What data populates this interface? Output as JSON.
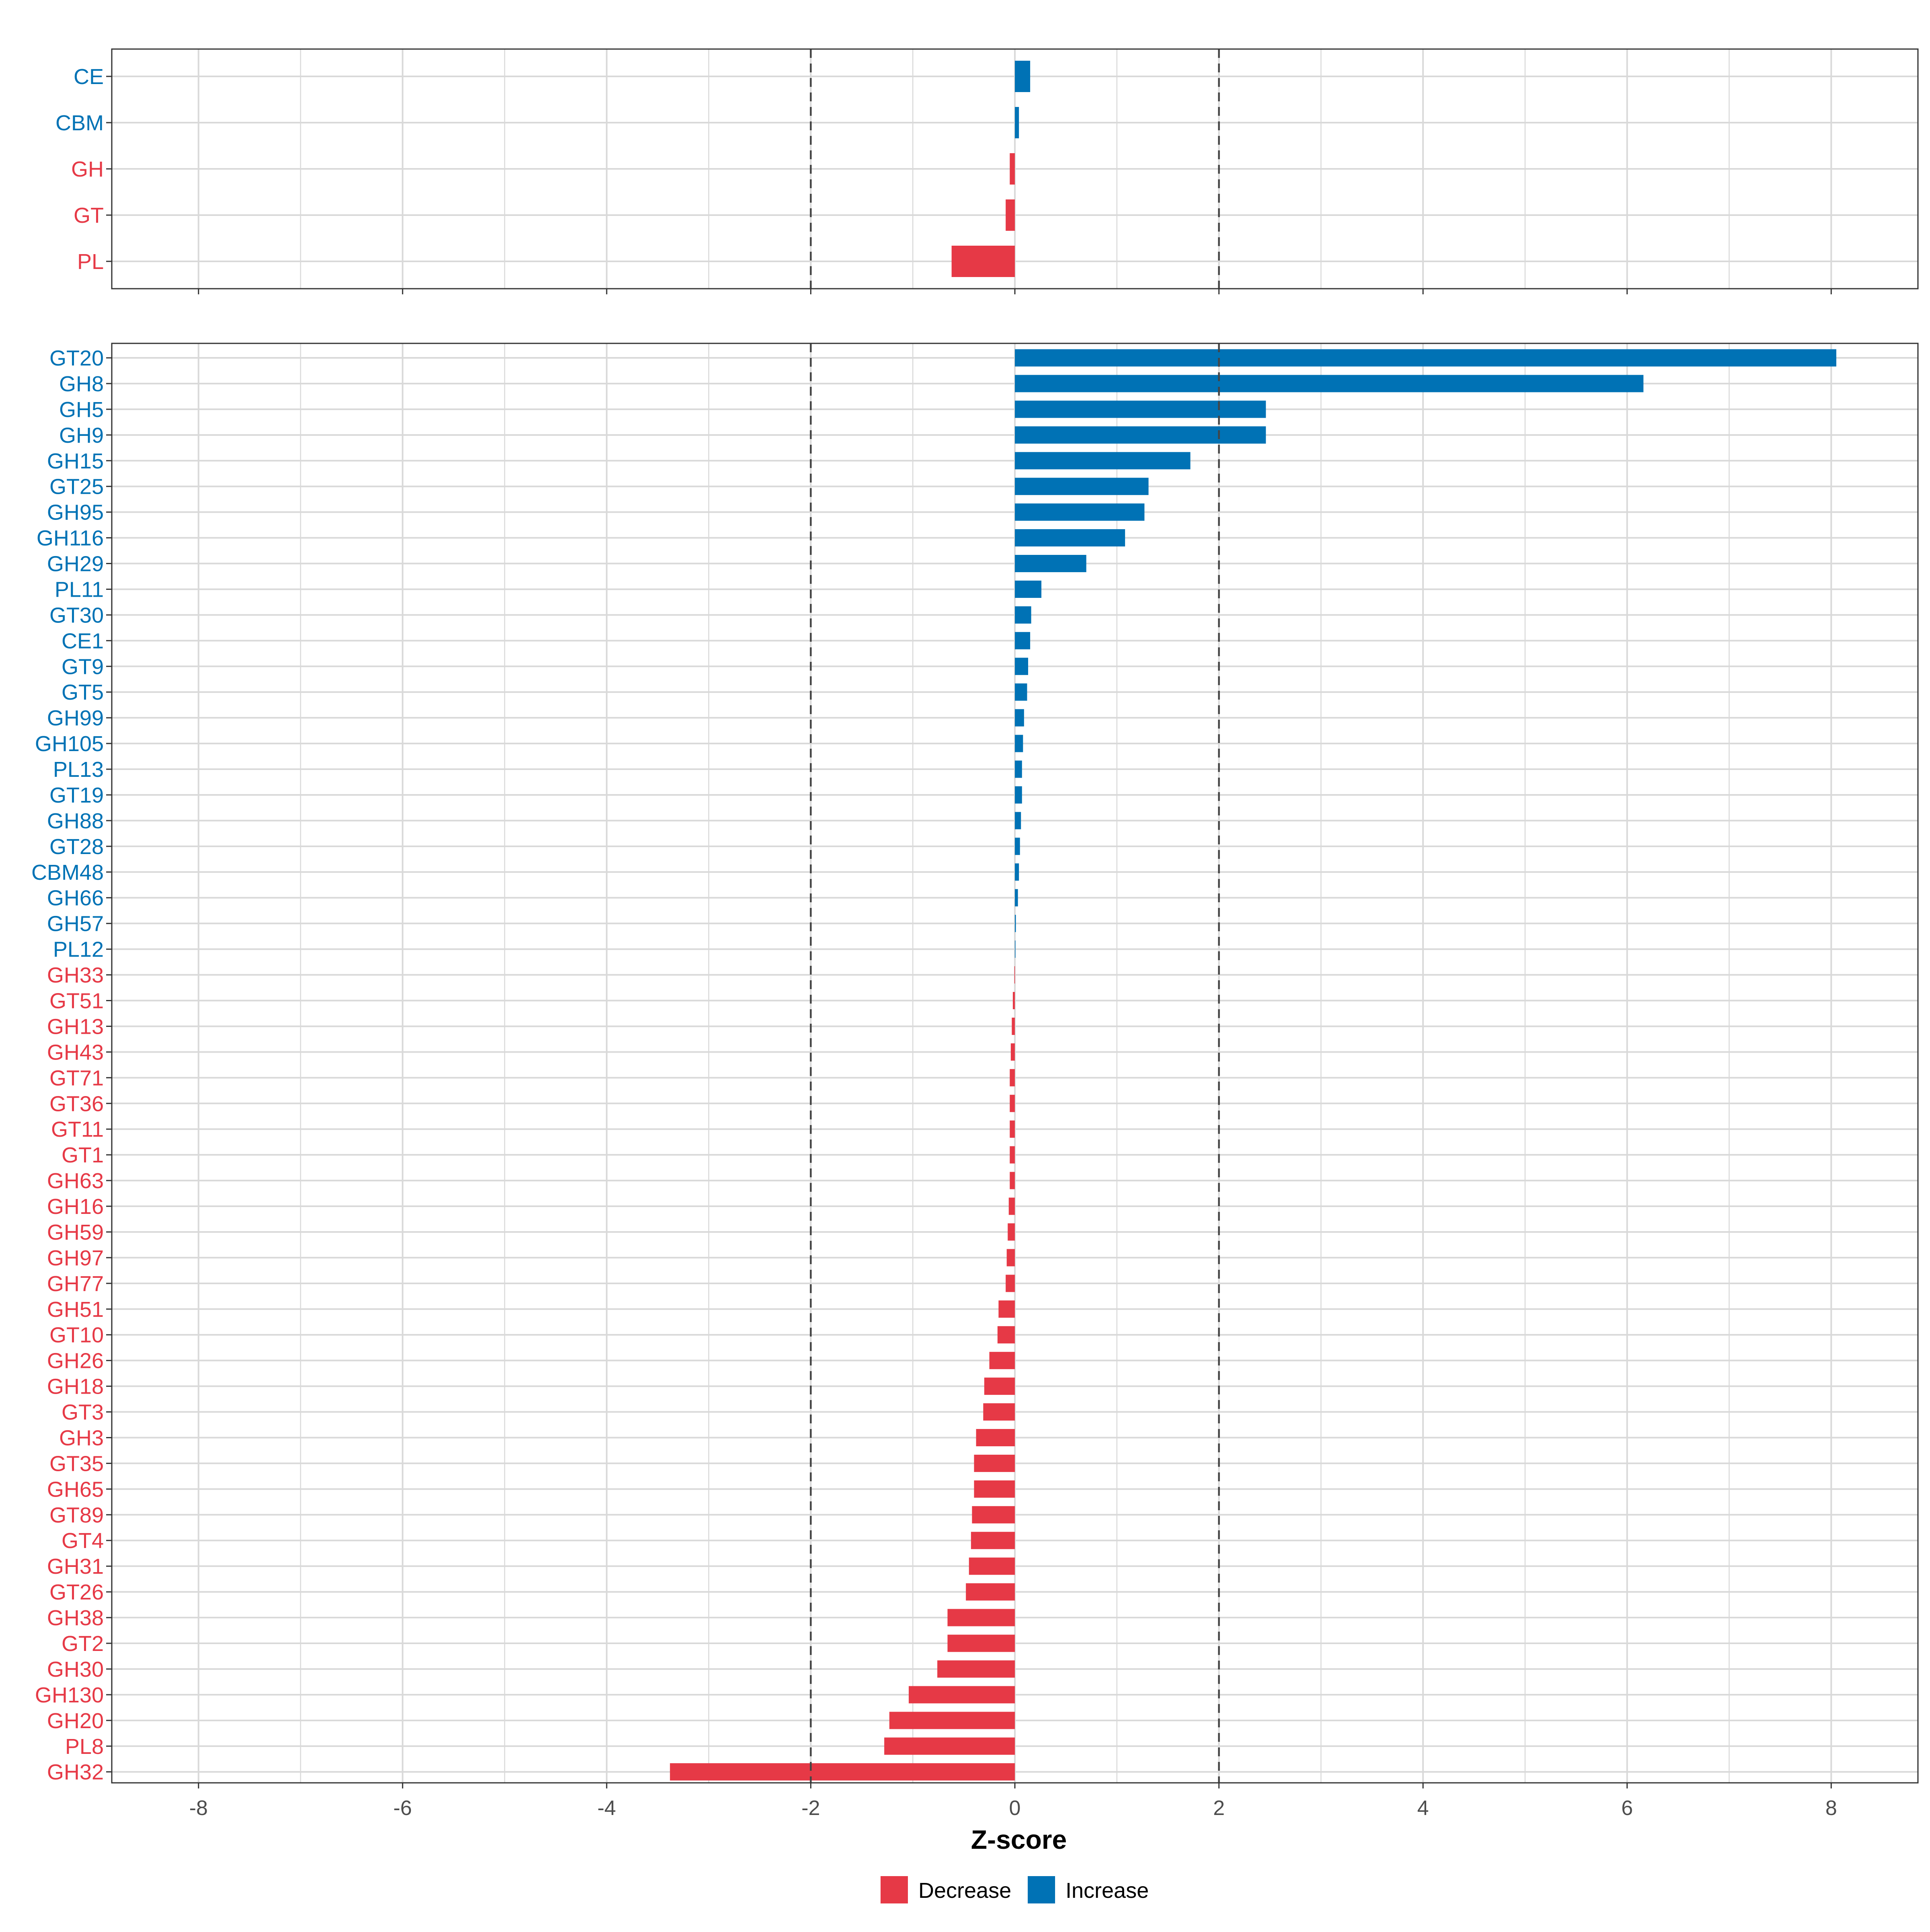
{
  "colors": {
    "increase": "#0072B5",
    "decrease": "#E63946",
    "grid": "#d9d9d9",
    "border": "#333333",
    "threshold": "#444444",
    "tick_text": "#4d4d4d"
  },
  "chart_data": [
    {
      "type": "bar",
      "orientation": "horizontal",
      "panel": "class-level",
      "categories": [
        "CE",
        "CBM",
        "GH",
        "GT",
        "PL"
      ],
      "values": [
        0.15,
        0.04,
        -0.05,
        -0.09,
        -0.62
      ],
      "direction": [
        "Increase",
        "Increase",
        "Decrease",
        "Decrease",
        "Decrease"
      ],
      "xlim": [
        -8.85,
        8.85
      ],
      "thresholds": [
        -2,
        2
      ],
      "grid": true,
      "x_tick_labels_visible": false
    },
    {
      "type": "bar",
      "orientation": "horizontal",
      "panel": "family-level",
      "categories": [
        "GT20",
        "GH8",
        "GH5",
        "GH9",
        "GH15",
        "GT25",
        "GH95",
        "GH116",
        "GH29",
        "PL11",
        "GT30",
        "CE1",
        "GT9",
        "GT5",
        "GH99",
        "GH105",
        "PL13",
        "GT19",
        "GH88",
        "GT28",
        "CBM48",
        "GH66",
        "GH57",
        "PL12",
        "GH33",
        "GT51",
        "GH13",
        "GH43",
        "GT71",
        "GT36",
        "GT11",
        "GT1",
        "GH63",
        "GH16",
        "GH59",
        "GH97",
        "GH77",
        "GH51",
        "GT10",
        "GH26",
        "GH18",
        "GT3",
        "GH3",
        "GT35",
        "GH65",
        "GT89",
        "GT4",
        "GH31",
        "GT26",
        "GH38",
        "GT2",
        "GH30",
        "GH130",
        "GH20",
        "PL8",
        "GH32"
      ],
      "values": [
        8.05,
        6.16,
        2.46,
        2.46,
        1.72,
        1.31,
        1.27,
        1.08,
        0.7,
        0.26,
        0.16,
        0.15,
        0.13,
        0.12,
        0.09,
        0.08,
        0.07,
        0.07,
        0.06,
        0.05,
        0.04,
        0.03,
        0.01,
        0.005,
        -0.005,
        -0.02,
        -0.03,
        -0.04,
        -0.05,
        -0.05,
        -0.05,
        -0.05,
        -0.05,
        -0.06,
        -0.07,
        -0.08,
        -0.09,
        -0.16,
        -0.17,
        -0.25,
        -0.3,
        -0.31,
        -0.38,
        -0.4,
        -0.4,
        -0.42,
        -0.43,
        -0.45,
        -0.48,
        -0.66,
        -0.66,
        -0.76,
        -1.04,
        -1.23,
        -1.28,
        -3.38
      ],
      "direction": [
        "Increase",
        "Increase",
        "Increase",
        "Increase",
        "Increase",
        "Increase",
        "Increase",
        "Increase",
        "Increase",
        "Increase",
        "Increase",
        "Increase",
        "Increase",
        "Increase",
        "Increase",
        "Increase",
        "Increase",
        "Increase",
        "Increase",
        "Increase",
        "Increase",
        "Increase",
        "Increase",
        "Increase",
        "Decrease",
        "Decrease",
        "Decrease",
        "Decrease",
        "Decrease",
        "Decrease",
        "Decrease",
        "Decrease",
        "Decrease",
        "Decrease",
        "Decrease",
        "Decrease",
        "Decrease",
        "Decrease",
        "Decrease",
        "Decrease",
        "Decrease",
        "Decrease",
        "Decrease",
        "Decrease",
        "Decrease",
        "Decrease",
        "Decrease",
        "Decrease",
        "Decrease",
        "Decrease",
        "Decrease",
        "Decrease",
        "Decrease",
        "Decrease",
        "Decrease",
        "Decrease"
      ],
      "xlim": [
        -8.85,
        8.85
      ],
      "x_ticks": [
        -8,
        -6,
        -4,
        -2,
        0,
        2,
        4,
        6,
        8
      ],
      "x_tick_labels": [
        "-8",
        "-6",
        "-4",
        "-2",
        "0",
        "2",
        "4",
        "6",
        "8"
      ],
      "thresholds": [
        -2,
        2
      ],
      "xlabel": "Z-score",
      "grid": true
    }
  ],
  "legend": {
    "position": "bottom",
    "items": [
      {
        "label": "Decrease",
        "color_key": "decrease"
      },
      {
        "label": "Increase",
        "color_key": "increase"
      }
    ]
  }
}
